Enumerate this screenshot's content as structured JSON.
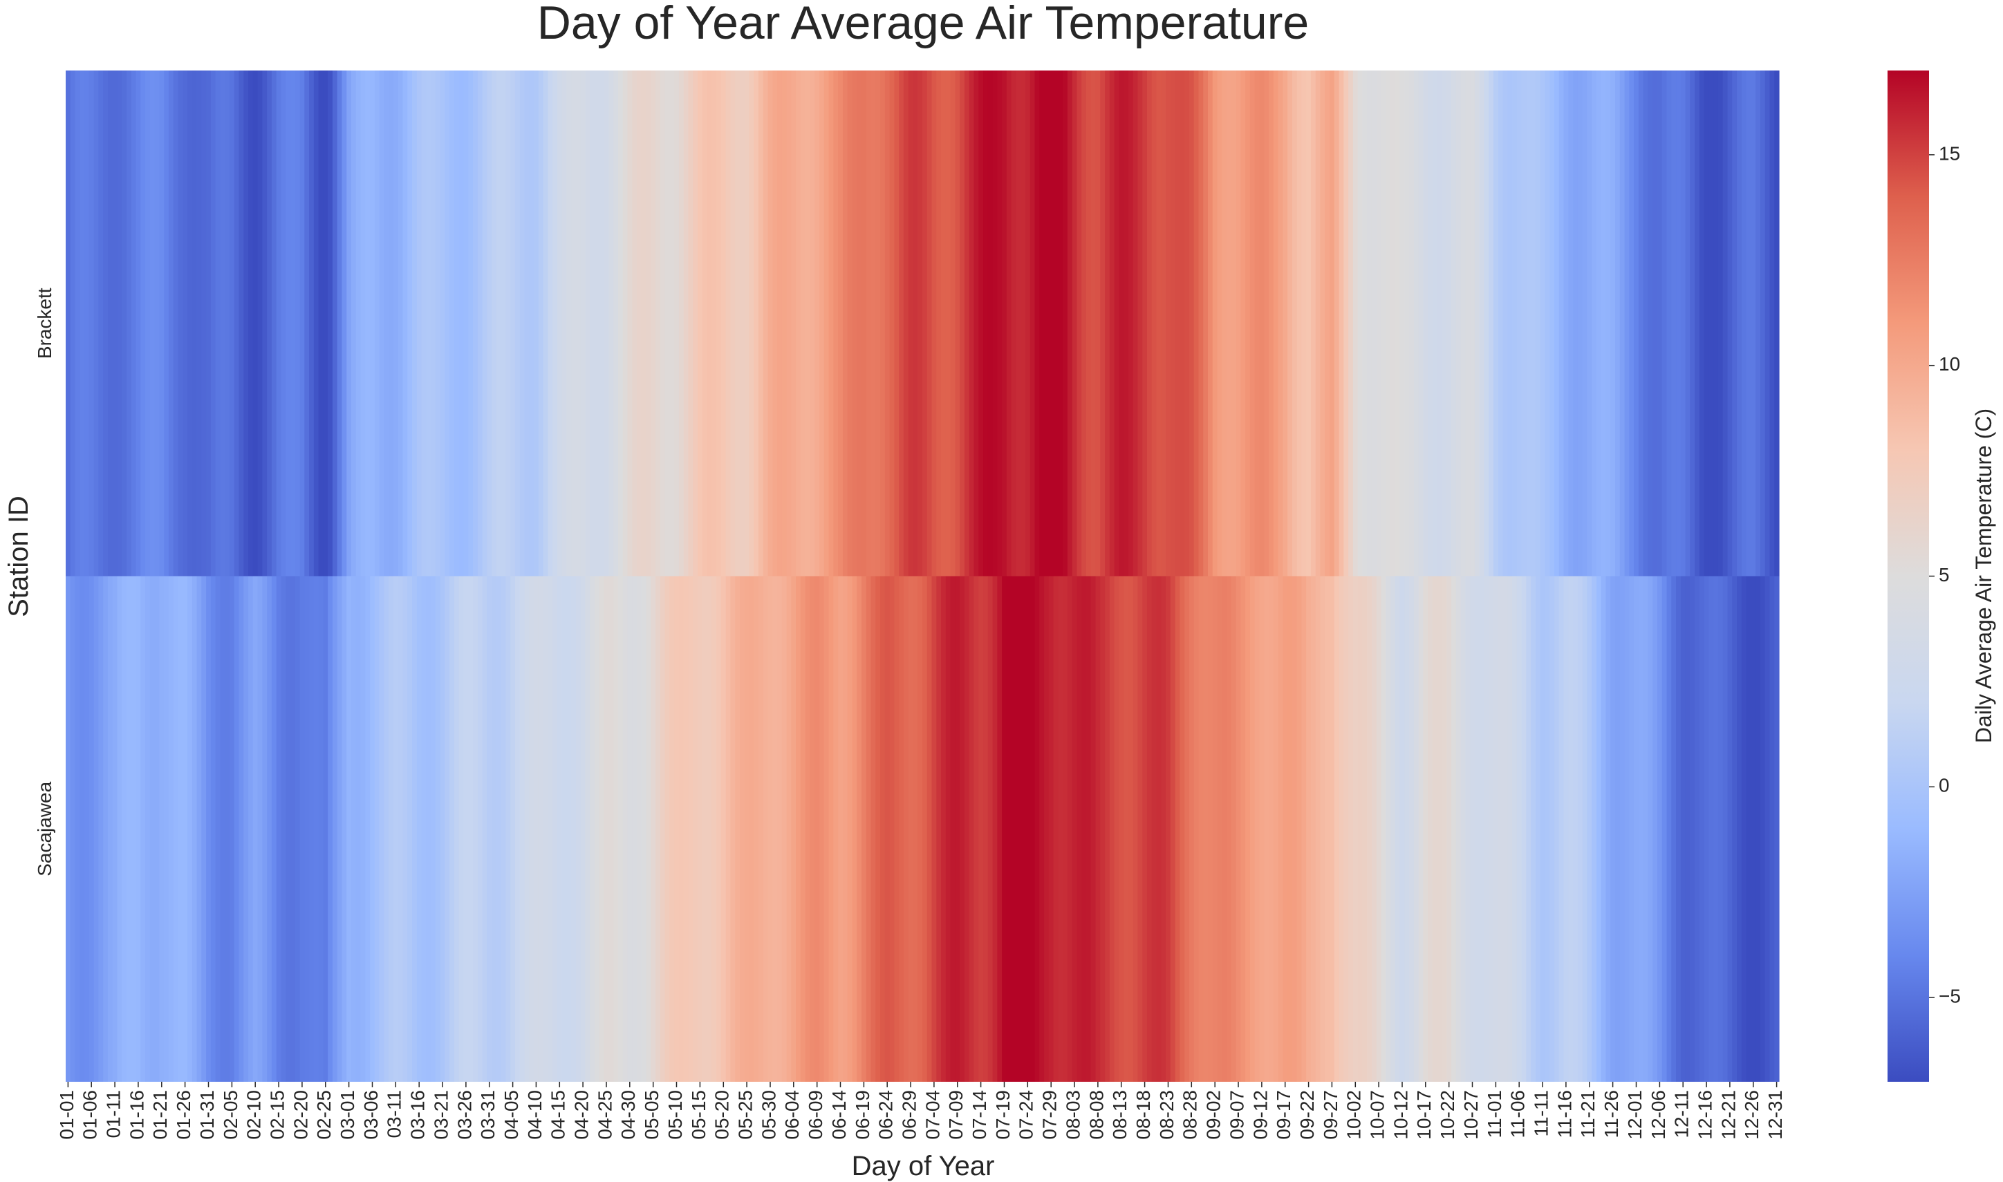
{
  "chart_data": {
    "type": "heatmap",
    "title": "Day of Year Average Air Temperature",
    "xlabel": "Day of Year",
    "ylabel": "Station ID",
    "colorbar_label": "Daily Average Air Temperature (C)",
    "colormap": "coolwarm",
    "colormap_stops": [
      "#3b4cc0",
      "#6788ee",
      "#9abbff",
      "#c9d7f0",
      "#dddcdc",
      "#f6c7b3",
      "#f49a7b",
      "#de604d",
      "#b40426"
    ],
    "vmin": -7,
    "vmax": 17,
    "colorbar_ticks": [
      -5,
      0,
      5,
      10,
      15
    ],
    "colorbar_tick_labels": [
      "−5",
      "0",
      "5",
      "10",
      "15"
    ],
    "rows": [
      "Brackett",
      "Sacajawea"
    ],
    "x_tick_labels": [
      "01-01",
      "01-06",
      "01-11",
      "01-16",
      "01-21",
      "01-26",
      "01-31",
      "02-05",
      "02-10",
      "02-15",
      "02-20",
      "02-25",
      "03-01",
      "03-06",
      "03-11",
      "03-16",
      "03-21",
      "03-26",
      "03-31",
      "04-05",
      "04-10",
      "04-15",
      "04-20",
      "04-25",
      "04-30",
      "05-05",
      "05-10",
      "05-15",
      "05-20",
      "05-25",
      "05-30",
      "06-04",
      "06-09",
      "06-14",
      "06-19",
      "06-24",
      "06-29",
      "07-04",
      "07-09",
      "07-14",
      "07-19",
      "07-24",
      "07-29",
      "08-03",
      "08-08",
      "08-13",
      "08-18",
      "08-23",
      "08-28",
      "09-02",
      "09-07",
      "09-12",
      "09-17",
      "09-22",
      "09-27",
      "10-02",
      "10-07",
      "10-12",
      "10-17",
      "10-22",
      "10-27",
      "11-01",
      "11-06",
      "11-11",
      "11-16",
      "11-21",
      "11-26",
      "12-01",
      "12-06",
      "12-11",
      "12-16",
      "12-21",
      "12-26",
      "12-31"
    ],
    "days": 366,
    "day_of_year": [
      1,
      6,
      11,
      16,
      21,
      26,
      31,
      36,
      41,
      46,
      51,
      56,
      61,
      66,
      71,
      76,
      81,
      86,
      91,
      96,
      101,
      106,
      111,
      116,
      121,
      126,
      131,
      136,
      141,
      146,
      151,
      156,
      161,
      166,
      171,
      176,
      181,
      186,
      191,
      196,
      201,
      206,
      211,
      216,
      221,
      226,
      231,
      236,
      241,
      246,
      251,
      256,
      261,
      266,
      271,
      276,
      281,
      286,
      291,
      296,
      301,
      306,
      311,
      316,
      321,
      326,
      331,
      336,
      341,
      346,
      351,
      356,
      361,
      366
    ],
    "series": [
      {
        "name": "Brackett",
        "values": [
          -5.5,
          -5,
          -4.6,
          -4.7,
          -4.2,
          -4.6,
          -6,
          -5.4,
          -6.2,
          -5.2,
          -4.8,
          -6.6,
          -3,
          -1.5,
          -1,
          -0.5,
          -0.3,
          0,
          0.4,
          1,
          1.2,
          2.3,
          3.5,
          4,
          5,
          6,
          6.2,
          7.2,
          8,
          7.8,
          9,
          10,
          10.5,
          11,
          13,
          14,
          14.5,
          14.5,
          15,
          15.8,
          16.8,
          16.5,
          17,
          16,
          15,
          15.5,
          15.5,
          15,
          13.5,
          11.5,
          11,
          11,
          10.5,
          8.5,
          9.5,
          6,
          5,
          4,
          4,
          3.5,
          3.5,
          1.5,
          0.5,
          -0.8,
          -1.3,
          -1.8,
          -2.5,
          -3.5,
          -5.2,
          -5.5,
          -6.5,
          -6,
          -5.5,
          -6.2
        ]
      },
      {
        "name": "Sacajawea",
        "values": [
          -3,
          -2.8,
          -2.7,
          -1,
          -1,
          -2,
          -3.4,
          -3.8,
          -3,
          -4.2,
          -4,
          -5.5,
          -1,
          -0.3,
          0,
          0,
          0.6,
          1,
          1.3,
          2,
          2.5,
          3,
          3.5,
          4.5,
          5,
          6,
          7,
          8,
          8.5,
          9,
          10,
          10.5,
          11,
          11,
          12.5,
          13.5,
          14,
          15,
          15.5,
          15.8,
          17,
          16.5,
          16.8,
          16,
          15,
          15.2,
          15,
          14.5,
          13.5,
          12,
          11,
          11,
          10.5,
          9,
          9.5,
          6.5,
          5,
          3.5,
          5,
          5,
          4,
          3,
          2,
          1,
          1,
          0,
          -1.5,
          -2.5,
          -3.5,
          -5,
          -5.8,
          -6,
          -6.2,
          -6.5
        ]
      }
    ]
  }
}
